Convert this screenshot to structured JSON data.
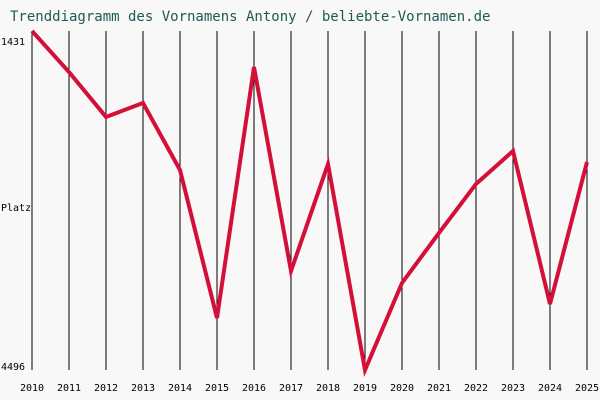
{
  "chart_data": {
    "type": "line",
    "title": "Trenddiagramm des Vornamens Antony / beliebte-Vornamen.de",
    "y_label": "Platz",
    "x": [
      2010,
      2011,
      2012,
      2013,
      2014,
      2015,
      2016,
      2017,
      2018,
      2019,
      2020,
      2021,
      2022,
      2023,
      2024,
      2025
    ],
    "xlim": [
      2010,
      2025
    ],
    "series": [
      {
        "name": "Antony",
        "color": "#d40f3a",
        "values": [
          1431,
          1802,
          2208,
          2082,
          2688,
          4026,
          1757,
          3601,
          2634,
          4496,
          3709,
          3257,
          2814,
          2516,
          3899,
          2616
        ]
      }
    ],
    "ylim": [
      4496,
      1431
    ],
    "yticks": [
      1431,
      4496
    ],
    "grid": true
  }
}
